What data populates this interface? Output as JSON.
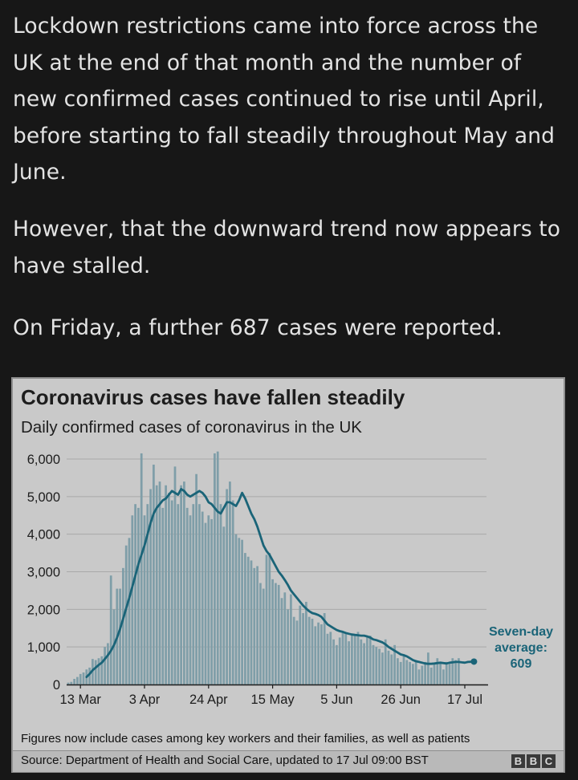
{
  "article": {
    "paragraphs": [
      "Lockdown restrictions came into force across the UK at the end of that month and the number of new confirmed cases continued to rise until April, before starting to fall steadily throughout May and June.",
      "However, that the downward trend now appears to have stalled.",
      "On Friday, a further 687 cases were reported."
    ]
  },
  "figure": {
    "note": "Figures now include cases among key workers and their families, as well as patients",
    "source": "Source: Department of Health and Social Care, updated to 17 Jul 09:00 BST",
    "logo_letters": [
      "B",
      "B",
      "C"
    ]
  },
  "colors": {
    "page_background": "#171717",
    "text": "#e3e3e3",
    "chart_background": "#c9c9c9",
    "bars": "#7f9ea8",
    "average_line": "#1a6478",
    "annotation": "#1a6478"
  },
  "chart_data": {
    "type": "bar",
    "title": "Coronavirus cases have fallen steadily",
    "subtitle": "Daily confirmed cases of coronavirus in the UK",
    "xlabel": "",
    "ylabel": "",
    "ylim": [
      0,
      6000
    ],
    "grid": true,
    "yticks": [
      "0",
      "1,000",
      "2,000",
      "3,000",
      "4,000",
      "5,000",
      "6,000"
    ],
    "xticks": [
      "13 Mar",
      "3 Apr",
      "24 Apr",
      "15 May",
      "5 Jun",
      "26 Jun",
      "17 Jul"
    ],
    "x_start": "2020-03-09",
    "x_end": "2020-07-17",
    "values": [
      50,
      70,
      150,
      200,
      280,
      320,
      400,
      450,
      680,
      650,
      700,
      750,
      1000,
      1100,
      2900,
      2000,
      2550,
      2550,
      3100,
      3700,
      3900,
      4500,
      4800,
      4700,
      6150,
      4500,
      4800,
      5200,
      5850,
      5300,
      5400,
      4700,
      5300,
      5100,
      4900,
      5800,
      4800,
      5300,
      5400,
      4700,
      4500,
      4800,
      5600,
      4800,
      4600,
      4300,
      4500,
      4400,
      6150,
      6200,
      4800,
      4200,
      5200,
      5400,
      4900,
      4000,
      3900,
      3850,
      3500,
      3400,
      3300,
      3100,
      3150,
      2700,
      2550,
      3450,
      3500,
      2800,
      2700,
      2650,
      2300,
      2450,
      2000,
      2400,
      1800,
      1700,
      2100,
      1900,
      2200,
      1800,
      1750,
      1550,
      1650,
      1600,
      1900,
      1350,
      1400,
      1200,
      1050,
      1250,
      1400,
      1350,
      1150,
      1350,
      1300,
      1400,
      1200,
      1100,
      1250,
      1300,
      1050,
      1000,
      950,
      850,
      1200,
      900,
      800,
      1050,
      700,
      600,
      750,
      650,
      600,
      550,
      650,
      400,
      500,
      600,
      850,
      450,
      550,
      700,
      600,
      400,
      600,
      550,
      700,
      650,
      700
    ],
    "average_line": {
      "start_index": 6,
      "values": [
        200,
        280,
        380,
        450,
        520,
        580,
        680,
        780,
        900,
        1050,
        1250,
        1480,
        1750,
        2030,
        2300,
        2600,
        2900,
        3200,
        3450,
        3700,
        4000,
        4300,
        4550,
        4700,
        4800,
        4900,
        4950,
        5050,
        5150,
        5100,
        5050,
        5200,
        5150,
        5050,
        5000,
        5050,
        5100,
        5150,
        5100,
        5000,
        4850,
        4800,
        4700,
        4600,
        4550,
        4700,
        4850,
        4850,
        4800,
        4750,
        4900,
        5100,
        4950,
        4750,
        4550,
        4400,
        4200,
        3950,
        3700,
        3550,
        3450,
        3300,
        3150,
        3000,
        2900,
        2780,
        2650,
        2500,
        2400,
        2300,
        2200,
        2100,
        2020,
        1950,
        1900,
        1880,
        1850,
        1800,
        1700,
        1600,
        1550,
        1500,
        1450,
        1420,
        1400,
        1370,
        1350,
        1330,
        1320,
        1310,
        1300,
        1300,
        1280,
        1250,
        1200,
        1180,
        1150,
        1120,
        1070,
        1000,
        950,
        900,
        850,
        800,
        780,
        750,
        700,
        650,
        620,
        600,
        580,
        560,
        550,
        550,
        560,
        570,
        580,
        570,
        560,
        580,
        590,
        600,
        600,
        590,
        580,
        600,
        605,
        609
      ]
    },
    "annotation": {
      "lines": [
        "Seven-day",
        "average:",
        "609"
      ],
      "value": 609
    }
  }
}
